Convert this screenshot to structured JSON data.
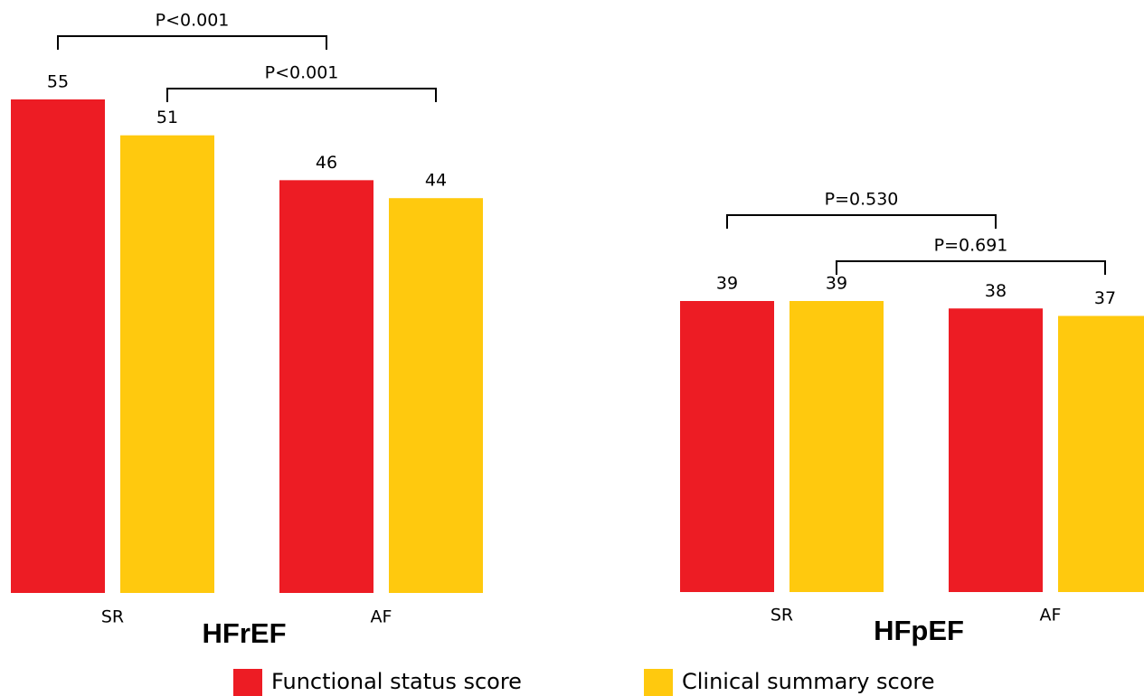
{
  "chart_data": [
    {
      "type": "bar",
      "title": "HFrEF",
      "categories": [
        "SR",
        "AF"
      ],
      "series": [
        {
          "name": "Functional status score",
          "color": "#ed1c24",
          "values": [
            55,
            46
          ]
        },
        {
          "name": "Clinical summary score",
          "color": "#ffc90e",
          "values": [
            51,
            44
          ]
        }
      ],
      "annotations": [
        {
          "text": "P<0.001"
        },
        {
          "text": "P<0.001"
        }
      ]
    },
    {
      "type": "bar",
      "title": "HFpEF",
      "categories": [
        "SR",
        "AF"
      ],
      "series": [
        {
          "color": "#ed1c24",
          "values": [
            39,
            38
          ]
        },
        {
          "color": "#ffc90e",
          "values": [
            39,
            37
          ]
        }
      ],
      "annotations": [
        {
          "text": "P=0.530"
        },
        {
          "text": "P=0.691"
        }
      ]
    }
  ]
}
